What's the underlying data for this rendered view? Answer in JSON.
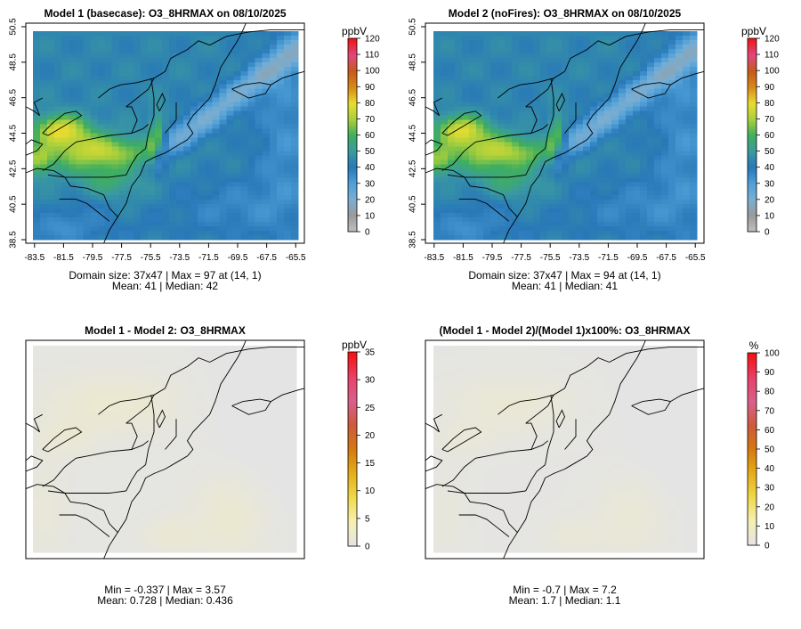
{
  "chart_data": [
    {
      "type": "heatmap",
      "title": "Model 1 (basecase): O3_8HRMAX on 08/10/2025",
      "x_ticks": [
        "-83.5",
        "-81.5",
        "-79.5",
        "-77.5",
        "-75.5",
        "-73.5",
        "-71.5",
        "-69.5",
        "-67.5",
        "-65.5"
      ],
      "y_ticks": [
        "38.5",
        "40.5",
        "42.5",
        "44.5",
        "46.5",
        "48.5",
        "50.5"
      ],
      "x_range": [
        -84.1,
        -64.9
      ],
      "y_range": [
        38.3,
        50.7
      ],
      "colorbar": {
        "unit": "ppbV",
        "ticks": [
          "0",
          "10",
          "20",
          "30",
          "40",
          "50",
          "60",
          "70",
          "80",
          "90",
          "100",
          "110",
          "120"
        ],
        "min": 0,
        "max": 120
      },
      "stats": [
        "Domain size: 37x47 | Max = 97 at (14, 1)",
        "Mean: 41 |  Median: 42"
      ],
      "field": "ozone"
    },
    {
      "type": "heatmap",
      "title": "Model 2 (noFires): O3_8HRMAX on 08/10/2025",
      "x_ticks": [
        "-83.5",
        "-81.5",
        "-79.5",
        "-77.5",
        "-75.5",
        "-73.5",
        "-71.5",
        "-69.5",
        "-67.5",
        "-65.5"
      ],
      "y_ticks": [
        "38.5",
        "40.5",
        "42.5",
        "44.5",
        "46.5",
        "48.5",
        "50.5"
      ],
      "x_range": [
        -84.1,
        -64.9
      ],
      "y_range": [
        38.3,
        50.7
      ],
      "colorbar": {
        "unit": "ppbV",
        "ticks": [
          "0",
          "10",
          "20",
          "30",
          "40",
          "50",
          "60",
          "70",
          "80",
          "90",
          "100",
          "110",
          "120"
        ],
        "min": 0,
        "max": 120
      },
      "stats": [
        "Domain size: 37x47 | Max = 94 at (14, 1)",
        "Mean: 41 |  Median: 41"
      ],
      "field": "ozone"
    },
    {
      "type": "heatmap",
      "title": "Model 1 - Model 2: O3_8HRMAX",
      "x_ticks": [],
      "y_ticks": [],
      "x_range": [
        -84.1,
        -64.9
      ],
      "y_range": [
        38.3,
        50.7
      ],
      "colorbar": {
        "unit": "ppbV",
        "ticks": [
          "0",
          "5",
          "10",
          "15",
          "20",
          "25",
          "30",
          "35"
        ],
        "min": 0,
        "max": 35
      },
      "stats": [
        "Min = -0.337 | Max = 3.57",
        "Mean: 0.728 |  Median: 0.436"
      ],
      "field": "diff"
    },
    {
      "type": "heatmap",
      "title": "(Model 1 - Model 2)/(Model 1)x100%: O3_8HRMAX",
      "x_ticks": [],
      "y_ticks": [],
      "x_range": [
        -84.1,
        -64.9
      ],
      "y_range": [
        38.3,
        50.7
      ],
      "colorbar": {
        "unit": "%",
        "ticks": [
          "0",
          "10",
          "20",
          "30",
          "40",
          "50",
          "60",
          "70",
          "80",
          "90",
          "100"
        ],
        "min": 0,
        "max": 100
      },
      "stats": [
        "Min = -0.7 | Max = 7.2",
        "Mean: 1.7 |  Median: 1.1"
      ],
      "field": "pct"
    }
  ],
  "colors": {
    "ozone_scale": [
      "#bfbfbf",
      "#9a9a9a",
      "#7aaed2",
      "#4f9fd8",
      "#2878b8",
      "#3a9aa0",
      "#3fae5f",
      "#a8cf3c",
      "#e9dd30",
      "#d88a18",
      "#c55a18",
      "#e0487f",
      "#f01818"
    ],
    "diff_scale": [
      "#e4e4e4",
      "#f6f0b3",
      "#f0d94a",
      "#e6ad1a",
      "#d47a10",
      "#cf5a3a",
      "#d8608a",
      "#e84068",
      "#f81010"
    ],
    "land_border": "#000000"
  }
}
